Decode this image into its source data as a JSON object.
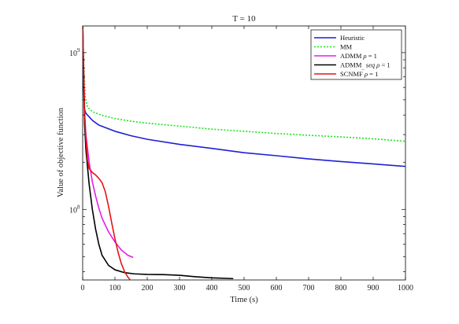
{
  "chart_data": {
    "type": "line",
    "title": "T = 10",
    "xlabel": "Time (s)",
    "ylabel": "Value of objective function",
    "xlim": [
      0,
      1000
    ],
    "ylim_log10": [
      7.55,
      9.17
    ],
    "yscale": "log",
    "grid": false,
    "legend_position": "top-right",
    "x_ticks": [
      0,
      100,
      200,
      300,
      400,
      500,
      600,
      700,
      800,
      900,
      1000
    ],
    "y_tick_labels": [
      {
        "base": "10",
        "exp": "8",
        "log10": 8
      },
      {
        "base": "10",
        "exp": "9",
        "log10": 9
      }
    ],
    "series": [
      {
        "name": "Heuristic",
        "color": "#1f1fd6",
        "dash": "solid",
        "points": [
          [
            0,
            1600000000.0
          ],
          [
            2,
            700000000.0
          ],
          [
            5,
            440000000.0
          ],
          [
            10,
            410000000.0
          ],
          [
            30,
            370000000.0
          ],
          [
            50,
            345000000.0
          ],
          [
            100,
            315000000.0
          ],
          [
            150,
            295000000.0
          ],
          [
            200,
            280000000.0
          ],
          [
            300,
            260000000.0
          ],
          [
            400,
            245000000.0
          ],
          [
            500,
            230000000.0
          ],
          [
            600,
            220000000.0
          ],
          [
            700,
            210000000.0
          ],
          [
            800,
            202000000.0
          ],
          [
            900,
            195000000.0
          ],
          [
            1000,
            188000000.0
          ]
        ]
      },
      {
        "name": "MM",
        "color": "#19e619",
        "dash": "dotted",
        "points": [
          [
            0,
            1600000000.0
          ],
          [
            3,
            900000000.0
          ],
          [
            8,
            520000000.0
          ],
          [
            15,
            450000000.0
          ],
          [
            30,
            420000000.0
          ],
          [
            60,
            398000000.0
          ],
          [
            100,
            380000000.0
          ],
          [
            150,
            365000000.0
          ],
          [
            200,
            355000000.0
          ],
          [
            300,
            340000000.0
          ],
          [
            400,
            325000000.0
          ],
          [
            500,
            315000000.0
          ],
          [
            600,
            305000000.0
          ],
          [
            700,
            297000000.0
          ],
          [
            800,
            290000000.0
          ],
          [
            900,
            282000000.0
          ],
          [
            1000,
            272000000.0
          ]
        ]
      },
      {
        "name": "ADMM ρ = 1",
        "name_main": "ADMM ",
        "name_italic": "ρ",
        "name_rest": " = 1",
        "color": "#e61ee6",
        "dash": "solid",
        "points": [
          [
            0,
            1600000000.0
          ],
          [
            3,
            800000000.0
          ],
          [
            6,
            400000000.0
          ],
          [
            10,
            300000000.0
          ],
          [
            20,
            200000000.0
          ],
          [
            30,
            150000000.0
          ],
          [
            40,
            122000000.0
          ],
          [
            50,
            102000000.0
          ],
          [
            60,
            88000000.0
          ],
          [
            80,
            72000000.0
          ],
          [
            100,
            62000000.0
          ],
          [
            120,
            55000000.0
          ],
          [
            140,
            51000000.0
          ],
          [
            155,
            49500000.0
          ]
        ]
      },
      {
        "name": "ADMM_seq ρ = 1",
        "name_main": "ADMM",
        "name_sub": "_",
        "name_italic": "seq ρ",
        "name_rest": " = 1",
        "color": "#000000",
        "dash": "solid",
        "points": [
          [
            0,
            1600000000.0
          ],
          [
            3,
            700000000.0
          ],
          [
            6,
            350000000.0
          ],
          [
            10,
            240000000.0
          ],
          [
            20,
            145000000.0
          ],
          [
            30,
            100000000.0
          ],
          [
            40,
            75000000.0
          ],
          [
            50,
            60000000.0
          ],
          [
            60,
            51000000.0
          ],
          [
            80,
            44000000.0
          ],
          [
            100,
            41200000.0
          ],
          [
            130,
            39500000.0
          ],
          [
            160,
            38800000.0
          ],
          [
            200,
            38500000.0
          ],
          [
            250,
            38400000.0
          ],
          [
            300,
            38000000.0
          ],
          [
            350,
            37200000.0
          ],
          [
            400,
            36600000.0
          ],
          [
            465,
            36200000.0
          ]
        ]
      },
      {
        "name": "SCNMF ρ = 1",
        "name_main": "SCNMF ",
        "name_italic": "ρ",
        "name_rest": " = 1",
        "color": "#e61414",
        "dash": "solid",
        "points": [
          [
            0,
            1600000000.0
          ],
          [
            3,
            800000000.0
          ],
          [
            6,
            420000000.0
          ],
          [
            10,
            280000000.0
          ],
          [
            15,
            205000000.0
          ],
          [
            20,
            182000000.0
          ],
          [
            30,
            172000000.0
          ],
          [
            40,
            166000000.0
          ],
          [
            50,
            158000000.0
          ],
          [
            60,
            148000000.0
          ],
          [
            70,
            130000000.0
          ],
          [
            80,
            105000000.0
          ],
          [
            90,
            82000000.0
          ],
          [
            100,
            65000000.0
          ],
          [
            110,
            53000000.0
          ],
          [
            120,
            45000000.0
          ],
          [
            130,
            40000000.0
          ],
          [
            140,
            37000000.0
          ],
          [
            150,
            35000000.0
          ],
          [
            160,
            33800000.0
          ],
          [
            170,
            33000000.0
          ],
          [
            180,
            32500000.0
          ]
        ]
      }
    ]
  }
}
